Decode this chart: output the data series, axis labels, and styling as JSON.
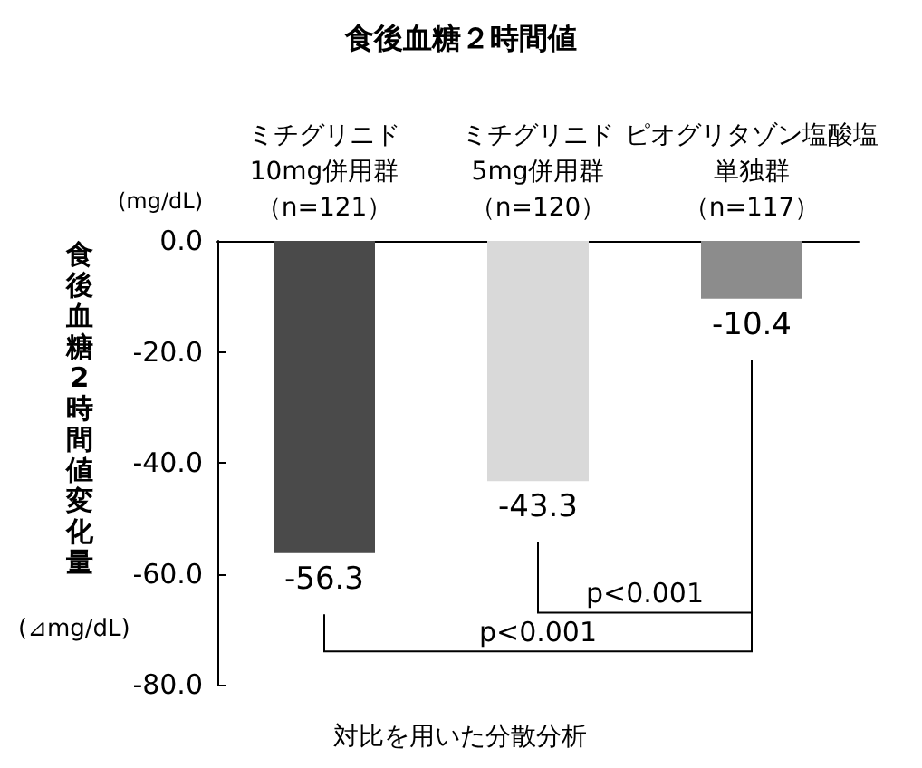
{
  "chart_data": {
    "type": "bar",
    "title": "食後血糖２時間値",
    "ylabel": "食後血糖2時間値変化量",
    "categories": [
      "ミチグリニド10mg併用群（n=121）",
      "ミチグリニド5mg併用群（n=120）",
      "ピオグリタゾン塩酸塩単独群（n=117）"
    ],
    "values": [
      -56.3,
      -43.3,
      -10.4
    ],
    "colors": [
      "#4a4a4a",
      "#d9d9d9",
      "#8c8c8c"
    ],
    "ylim": [
      -80,
      0
    ],
    "yticks": [
      {
        "value": 0,
        "label": "0.0"
      },
      {
        "value": -20,
        "label": "-20.0"
      },
      {
        "value": -40,
        "label": "-40.0"
      },
      {
        "value": -60,
        "label": "-60.0"
      },
      {
        "value": -80,
        "label": "-80.0"
      }
    ],
    "data_labels": true,
    "grid": false,
    "annotations": [
      "(mg/dL)",
      "(⊿mg/dL)",
      "p<0.001",
      "p<0.001",
      "対比を用いた分散分析"
    ]
  }
}
